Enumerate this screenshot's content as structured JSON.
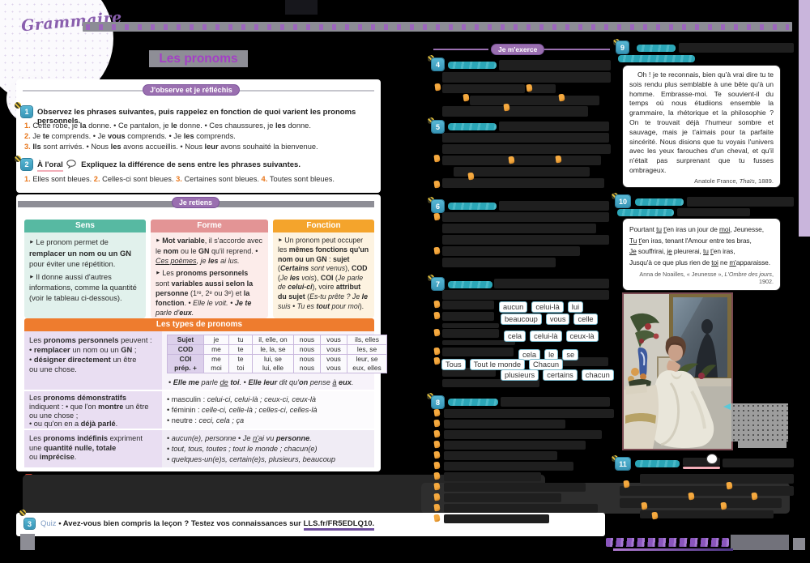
{
  "page": {
    "subject_label": "Grammaire",
    "title": "Les pronoms"
  },
  "observe": {
    "header": "J'observe et je réfléchis",
    "ex1": {
      "num": "1",
      "prompt": "Observez les phrases suivantes, puis rappelez en fonction de quoi varient les pronoms personnels.",
      "items": [
        [
          {
            "t": "1. ",
            "s": "o"
          },
          {
            "t": "Cette robe, je "
          },
          {
            "t": "la",
            "s": "b"
          },
          {
            "t": " donne. • Ce pantalon, je "
          },
          {
            "t": "le",
            "s": "b"
          },
          {
            "t": " donne. • Ces chaussures, je "
          },
          {
            "t": "les",
            "s": "b"
          },
          {
            "t": " donne."
          }
        ],
        [
          {
            "t": "2. ",
            "s": "o"
          },
          {
            "t": "Je "
          },
          {
            "t": "te",
            "s": "b"
          },
          {
            "t": " comprends. • Je "
          },
          {
            "t": "vous",
            "s": "b"
          },
          {
            "t": " comprends. • Je "
          },
          {
            "t": "les",
            "s": "b"
          },
          {
            "t": " comprends."
          }
        ],
        [
          {
            "t": "3. ",
            "s": "o"
          },
          {
            "t": "Ils",
            "s": "b"
          },
          {
            "t": " sont arrivés. • Nous "
          },
          {
            "t": "les",
            "s": "b"
          },
          {
            "t": " avons accueillis. • Nous "
          },
          {
            "t": "leur",
            "s": "b"
          },
          {
            "t": " avons souhaité la bienvenue."
          }
        ]
      ]
    },
    "ex2": {
      "num": "2",
      "oral_label": "À l'oral",
      "prompt": "Expliquez la différence de sens entre les phrases suivantes.",
      "line": [
        {
          "t": "1. ",
          "s": "o"
        },
        {
          "t": "Elles sont bleues. "
        },
        {
          "t": "2. ",
          "s": "o"
        },
        {
          "t": "Celles-ci sont bleues. "
        },
        {
          "t": "3. ",
          "s": "o"
        },
        {
          "t": "Certaines sont bleues. "
        },
        {
          "t": "4. ",
          "s": "o"
        },
        {
          "t": "Toutes sont bleues."
        }
      ]
    }
  },
  "retiens": {
    "header": "Je retiens",
    "sens": {
      "title": "Sens",
      "bullets": [
        [
          {
            "t": "► ",
            "s": "a"
          },
          {
            "t": "Le pronom permet de "
          },
          {
            "t": "remplacer un nom ou un GN",
            "s": "b"
          },
          {
            "t": " pour éviter une répétition."
          }
        ],
        [
          {
            "t": "► ",
            "s": "a"
          },
          {
            "t": "Il donne aussi d'autres informations, comme la quantité (voir le tableau ci-dessous)."
          }
        ]
      ]
    },
    "forme": {
      "title": "Forme",
      "bullets": [
        [
          {
            "t": "► ",
            "s": "a"
          },
          {
            "t": "Mot variable",
            "s": "b"
          },
          {
            "t": ", il s'accorde avec le "
          },
          {
            "t": "nom",
            "s": "b"
          },
          {
            "t": " ou le "
          },
          {
            "t": "GN",
            "s": "b"
          },
          {
            "t": " qu'il reprend. • "
          },
          {
            "t": "Ces poèmes",
            "s": "iu"
          },
          {
            "t": ", je ",
            "s": "i"
          },
          {
            "t": "les",
            "s": "bi"
          },
          {
            "t": " ai lus.",
            "s": "i"
          }
        ],
        [
          {
            "t": "► ",
            "s": "a"
          },
          {
            "t": "Les "
          },
          {
            "t": "pronoms personnels",
            "s": "b"
          },
          {
            "t": " sont "
          },
          {
            "t": "variables aussi selon la personne",
            "s": "b"
          },
          {
            "t": " (1ʳᵉ, 2ᵉ ou 3ᵉ) et "
          },
          {
            "t": "la fonction",
            "s": "b"
          },
          {
            "t": ". • "
          },
          {
            "t": "Elle le voit.",
            "s": "i"
          },
          {
            "t": " • "
          },
          {
            "t": "Je te",
            "s": "bi"
          },
          {
            "t": " parle d'",
            "s": "i"
          },
          {
            "t": "eux",
            "s": "bi"
          },
          {
            "t": ".",
            "s": "i"
          }
        ]
      ]
    },
    "fonction": {
      "title": "Fonction",
      "bullets": [
        [
          {
            "t": "► ",
            "s": "a"
          },
          {
            "t": "Un pronom peut occuper les "
          },
          {
            "t": "mêmes fonctions qu'un nom ou un GN",
            "s": "b"
          },
          {
            "t": " : "
          },
          {
            "t": "sujet",
            "s": "b"
          },
          {
            "t": " ("
          },
          {
            "t": "Certains",
            "s": "bi"
          },
          {
            "t": " sont venus",
            "s": "i"
          },
          {
            "t": "), "
          },
          {
            "t": "COD",
            "s": "b"
          },
          {
            "t": " ("
          },
          {
            "t": "Je ",
            "s": "i"
          },
          {
            "t": "les",
            "s": "bi"
          },
          {
            "t": " vois",
            "s": "i"
          },
          {
            "t": "), "
          },
          {
            "t": "COI",
            "s": "b"
          },
          {
            "t": " ("
          },
          {
            "t": "Je parle de ",
            "s": "i"
          },
          {
            "t": "celui-ci",
            "s": "bi"
          },
          {
            "t": "), voire "
          },
          {
            "t": "attribut du sujet",
            "s": "b"
          },
          {
            "t": " ("
          },
          {
            "t": "Es-tu prête ? Je ",
            "s": "i"
          },
          {
            "t": "le",
            "s": "bi"
          },
          {
            "t": " suis • Tu es ",
            "s": "i"
          },
          {
            "t": "tout",
            "s": "bi"
          },
          {
            "t": " pour moi",
            "s": "i"
          },
          {
            "t": ")."
          }
        ]
      ]
    }
  },
  "types": {
    "header": "Les types de pronoms",
    "personnels": {
      "left": [
        {
          "t": "Les "
        },
        {
          "t": "pronoms personnels",
          "s": "b"
        },
        {
          "t": " peuvent :\n• "
        },
        {
          "t": "remplacer",
          "s": "b"
        },
        {
          "t": " un nom ou un "
        },
        {
          "t": "GN",
          "s": "b"
        },
        {
          "t": " ;\n• "
        },
        {
          "t": "désigner directement",
          "s": "b"
        },
        {
          "t": " un être\nou une chose."
        }
      ],
      "table": {
        "rows": [
          {
            "label": "Sujet",
            "cells": [
              "je",
              "tu",
              "il, elle, on",
              "nous",
              "vous",
              "ils, elles"
            ]
          },
          {
            "label": "COD",
            "cells": [
              "me",
              "te",
              "le, la, se",
              "nous",
              "vous",
              "les, se"
            ]
          },
          {
            "label": "COI\nprép. +",
            "cells": [
              "me\nmoi",
              "te\ntoi",
              "lui, se\nlui, elle",
              "nous\nnous",
              "vous\nvous",
              "leur, se\neux, elles"
            ]
          }
        ]
      },
      "example": [
        {
          "t": "• "
        },
        {
          "t": "Elle me",
          "s": "bi"
        },
        {
          "t": " parle ",
          "s": "i"
        },
        {
          "t": "de",
          "s": "iu"
        },
        {
          "t": " ",
          "s": "i"
        },
        {
          "t": "toi",
          "s": "bi"
        },
        {
          "t": ".",
          "s": "i"
        },
        {
          "t": " • "
        },
        {
          "t": "Elle leur",
          "s": "bi"
        },
        {
          "t": " dit qu'",
          "s": "i"
        },
        {
          "t": "on",
          "s": "bi"
        },
        {
          "t": " pense ",
          "s": "i"
        },
        {
          "t": "à",
          "s": "iu"
        },
        {
          "t": " ",
          "s": "i"
        },
        {
          "t": "eux",
          "s": "bi"
        },
        {
          "t": ".",
          "s": "i"
        }
      ]
    },
    "demonstratifs": {
      "left": [
        {
          "t": "Les "
        },
        {
          "t": "pronoms démonstratifs",
          "s": "b"
        },
        {
          "t": "\nindiquent : • que l'on "
        },
        {
          "t": "montre",
          "s": "b"
        },
        {
          "t": " un être\nou une chose ;\n• ou qu'on en a "
        },
        {
          "t": "déjà parlé",
          "s": "b"
        },
        {
          "t": "."
        }
      ],
      "bullets": [
        [
          {
            "t": "• masculin : "
          },
          {
            "t": "celui-ci, celui-là ; ceux-ci, ceux-là",
            "s": "i"
          }
        ],
        [
          {
            "t": "• féminin : "
          },
          {
            "t": "celle-ci, celle-là ; celles-ci, celles-là",
            "s": "i"
          }
        ],
        [
          {
            "t": "• neutre : "
          },
          {
            "t": "ceci, cela ; ça",
            "s": "i"
          }
        ]
      ]
    },
    "indefinis": {
      "left": [
        {
          "t": "Les "
        },
        {
          "t": "pronoms indéfinis",
          "s": "b"
        },
        {
          "t": " expriment\nune "
        },
        {
          "t": "quantité nulle, totale",
          "s": "b"
        },
        {
          "t": "\nou "
        },
        {
          "t": "imprécise",
          "s": "b"
        },
        {
          "t": "."
        }
      ],
      "bullets": [
        [
          {
            "t": "• "
          },
          {
            "t": "aucun(e), personne",
            "s": "i"
          },
          {
            "t": " • "
          },
          {
            "t": "Je ",
            "s": "i"
          },
          {
            "t": "n'",
            "s": "iu"
          },
          {
            "t": "ai vu ",
            "s": "i"
          },
          {
            "t": "personne",
            "s": "bi"
          },
          {
            "t": ".",
            "s": "i"
          }
        ],
        [
          {
            "t": "• "
          },
          {
            "t": "tout, tous, toutes ; tout le monde ; chacun(e)",
            "s": "i"
          }
        ],
        [
          {
            "t": "• "
          },
          {
            "t": "quelques-un(e)s, certain(e)s, plusieurs, beaucoup",
            "s": "i"
          }
        ]
      ]
    }
  },
  "quiz": {
    "num": "3",
    "label": "Quiz",
    "text": "• Avez-vous bien compris la leçon ? Testez vos connaissances sur",
    "link": "LLS.fr/FR5EDLQ10."
  },
  "exerce": {
    "header": "Je m'exerce",
    "ex4": {
      "num": "4"
    },
    "ex5": {
      "num": "5"
    },
    "ex6": {
      "num": "6"
    },
    "ex7": {
      "num": "7",
      "words": [
        [
          "aucun",
          "celui-là",
          "lui"
        ],
        [
          "beaucoup",
          "vous",
          "celle"
        ],
        [
          "cela",
          "celui-là",
          "ceux-là"
        ],
        [
          "cela",
          "le",
          "se"
        ],
        [
          "Tous",
          "Tout le monde",
          "Chacun"
        ],
        [
          "plusieurs",
          "certains",
          "chacun"
        ]
      ]
    },
    "ex8": {
      "num": "8"
    },
    "ex9": {
      "num": "9",
      "text": "Oh ! je te reconnais, bien qu'à vrai dire tu te sois rendu plus semblable à une bête qu'à un homme. Embrasse-moi. Te souvient-il du temps où nous étudiions ensemble la grammaire, la rhétorique et la philosophie ? On te trouvait déjà l'humeur sombre et sauvage, mais je t'aimais pour ta parfaite sincérité. Nous disions que tu voyais l'univers avec les yeux farouches d'un cheval, et qu'il n'était pas surprenant que tu fusses ombrageux.",
      "attribution": [
        {
          "t": "Anatole France, "
        },
        {
          "t": "Thaïs",
          "s": "i"
        },
        {
          "t": ", 1889."
        }
      ]
    },
    "ex10": {
      "num": "10",
      "poem": [
        [
          {
            "t": "Pourtant "
          },
          {
            "t": "tu",
            "s": "u"
          },
          {
            "t": " "
          },
          {
            "t": "t'",
            "s": "u"
          },
          {
            "t": "en iras un jour de "
          },
          {
            "t": "moi",
            "s": "u"
          },
          {
            "t": ", Jeunesse,"
          }
        ],
        [
          {
            "t": "Tu",
            "s": "u"
          },
          {
            "t": " "
          },
          {
            "t": "t'",
            "s": "u"
          },
          {
            "t": "en iras, tenant l'Amour entre tes bras,"
          }
        ],
        [
          {
            "t": "Je",
            "s": "u"
          },
          {
            "t": " souffrirai, "
          },
          {
            "t": "je",
            "s": "u"
          },
          {
            "t": " pleurerai, "
          },
          {
            "t": "tu",
            "s": "u"
          },
          {
            "t": " "
          },
          {
            "t": "t'",
            "s": "u"
          },
          {
            "t": "en iras,"
          }
        ],
        [
          {
            "t": "Jusqu'à ce que plus rien de "
          },
          {
            "t": "toi",
            "s": "u"
          },
          {
            "t": " ne "
          },
          {
            "t": "m'",
            "s": "u"
          },
          {
            "t": "apparaisse."
          }
        ]
      ],
      "attribution": [
        {
          "t": "Anna de Noailles, « Jeunesse », "
        },
        {
          "t": "L'Ombre des jours",
          "s": "i"
        },
        {
          "t": ", 1902."
        }
      ]
    },
    "ex11": {
      "num": "11"
    }
  },
  "icons": {
    "speech_bubble": "outlined ellipse with tail",
    "bee": "yellow-black striped dot",
    "orange_marker": "orange squiggle mark",
    "red_marker": "red dot",
    "callout_arrow": "◄"
  },
  "colors": {
    "accent_purple": "#9a6fb0",
    "badge_blue": "#3fa3c0",
    "sens_teal": "#57b9a2",
    "forme_pink": "#e39495",
    "fonction_orange": "#f4a42c",
    "types_orange": "#ee7c2e",
    "list_number_orange": "#e8761a"
  }
}
